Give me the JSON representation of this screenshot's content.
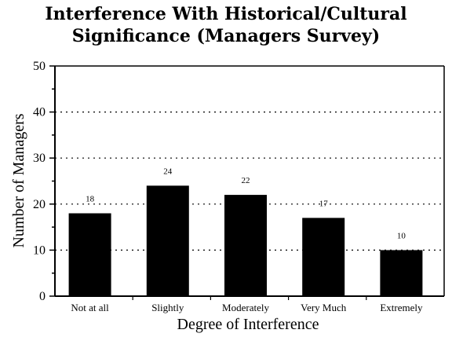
{
  "chart_data": {
    "type": "bar",
    "title_line1": "Interference With Historical/Cultural",
    "title_line2": "Significance (Managers Survey)",
    "xlabel": "Degree of Interference",
    "ylabel": "Number of Managers",
    "categories": [
      "Not at all",
      "Slightly",
      "Moderately",
      "Very Much",
      "Extremely"
    ],
    "values": [
      18,
      24,
      22,
      17,
      10
    ],
    "value_labels": [
      "18",
      "24",
      "22",
      "17",
      "10"
    ],
    "ylim": [
      0,
      50
    ],
    "yticks": [
      0,
      10,
      20,
      30,
      40,
      50
    ],
    "ytick_labels": [
      "0",
      "10",
      "20",
      "30",
      "40",
      "50"
    ],
    "grid": "horizontal-dotted",
    "bar_color": "#000000"
  }
}
